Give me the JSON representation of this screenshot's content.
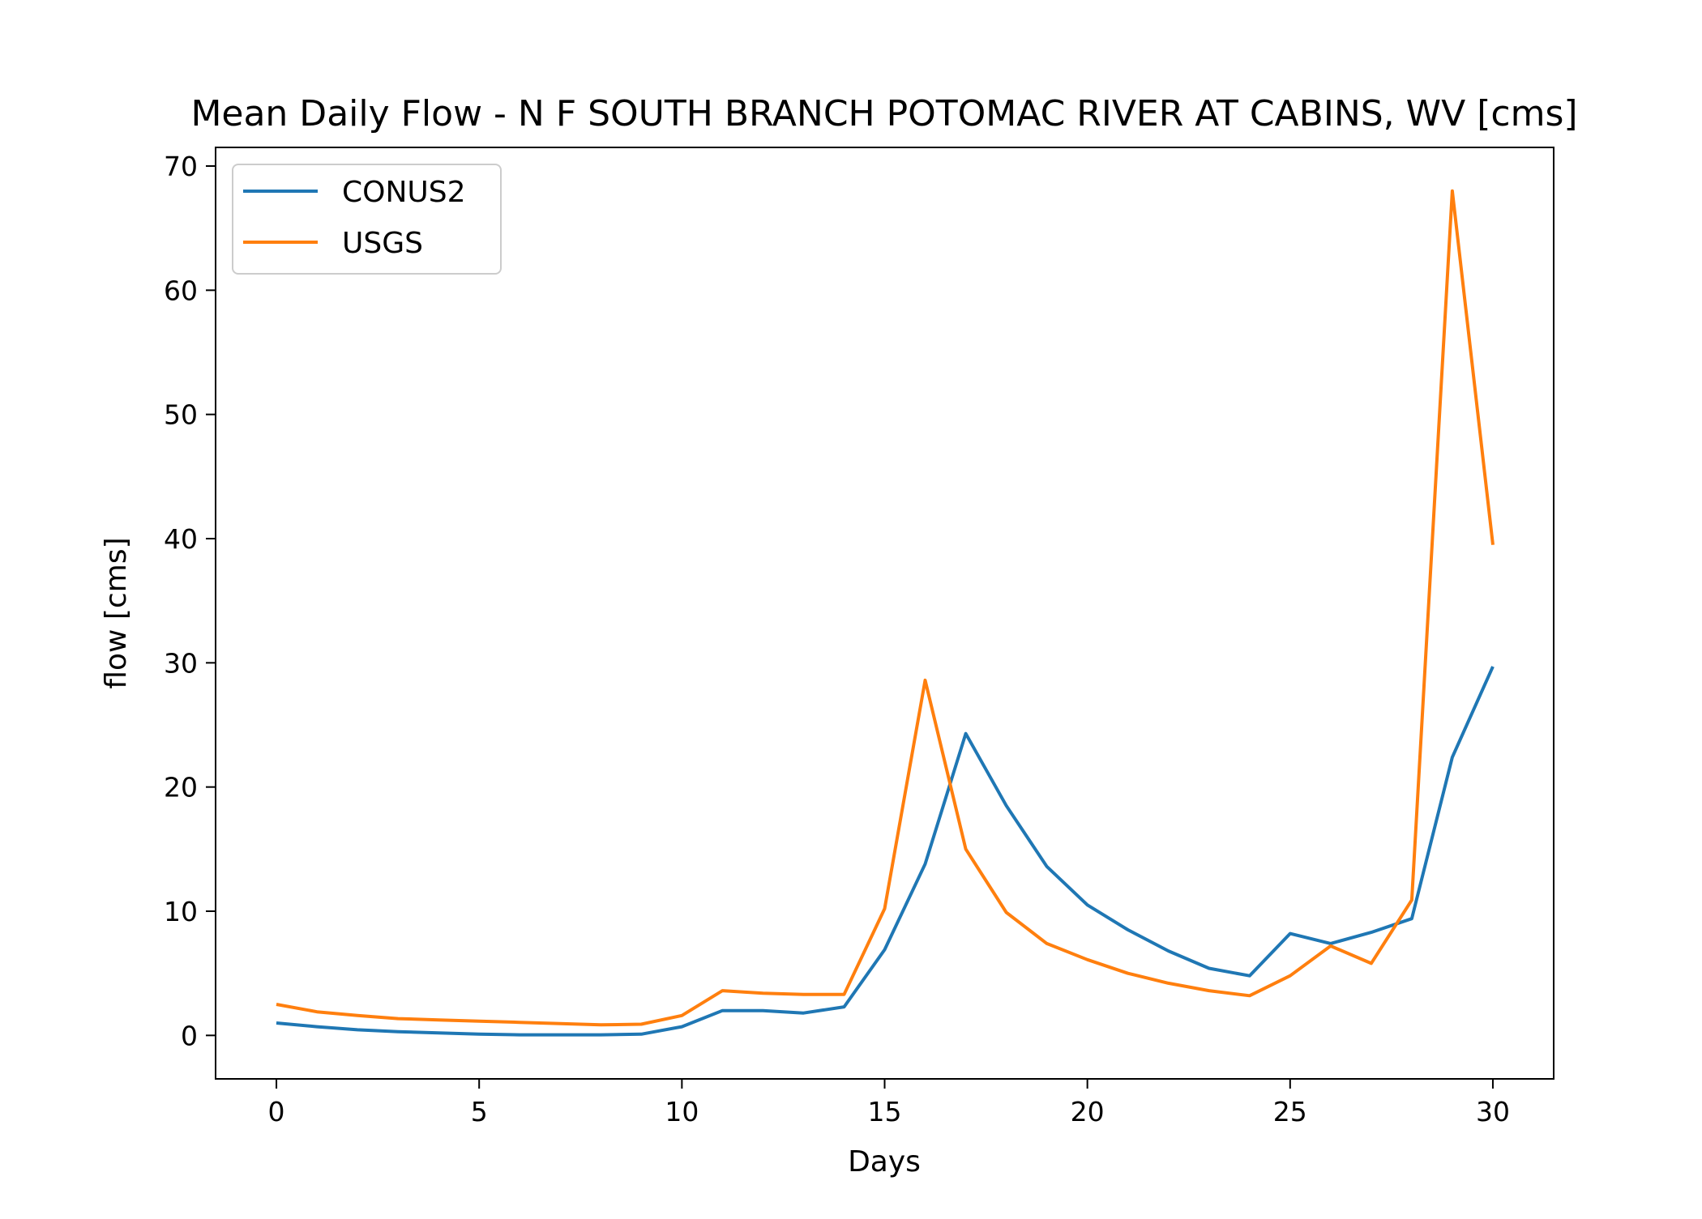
{
  "chart_data": {
    "type": "line",
    "title": "Mean Daily Flow - N F SOUTH BRANCH POTOMAC RIVER AT CABINS, WV [cms]",
    "xlabel": "Days",
    "ylabel": "flow [cms]",
    "xlim": [
      -1.5,
      31.5
    ],
    "ylim": [
      -3.5,
      71.5
    ],
    "xticks": [
      0,
      5,
      10,
      15,
      20,
      25,
      30
    ],
    "yticks": [
      0,
      10,
      20,
      30,
      40,
      50,
      60,
      70
    ],
    "grid": false,
    "legend_position": "top-left",
    "x": [
      0,
      1,
      2,
      3,
      4,
      5,
      6,
      7,
      8,
      9,
      10,
      11,
      12,
      13,
      14,
      15,
      16,
      17,
      18,
      19,
      20,
      21,
      22,
      23,
      24,
      25,
      26,
      27,
      28,
      29,
      30
    ],
    "series": [
      {
        "name": "CONUS2",
        "color": "#1f77b4",
        "values": [
          1.0,
          0.7,
          0.45,
          0.3,
          0.2,
          0.1,
          0.05,
          0.05,
          0.05,
          0.1,
          0.7,
          2.0,
          2.0,
          1.8,
          2.3,
          6.9,
          13.8,
          24.3,
          18.5,
          13.6,
          10.5,
          8.5,
          6.8,
          5.4,
          4.8,
          8.2,
          7.4,
          8.3,
          9.4,
          22.4,
          29.7
        ]
      },
      {
        "name": "USGS",
        "color": "#ff7f0e",
        "values": [
          2.5,
          1.9,
          1.6,
          1.35,
          1.25,
          1.15,
          1.05,
          0.95,
          0.85,
          0.9,
          1.6,
          3.6,
          3.4,
          3.3,
          3.3,
          10.2,
          28.6,
          15.0,
          9.9,
          7.4,
          6.1,
          5.0,
          4.2,
          3.6,
          3.2,
          4.8,
          7.2,
          5.8,
          10.9,
          68.0,
          39.5
        ]
      }
    ]
  }
}
